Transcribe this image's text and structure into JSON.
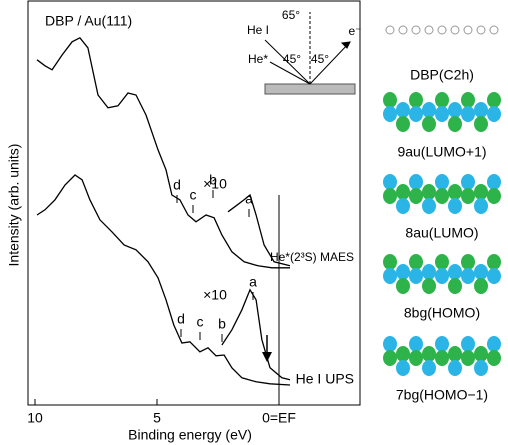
{
  "chart_data": {
    "type": "line",
    "title": "DBP / Au(111)",
    "x_label": "Binding energy (eV)",
    "y_label": "Intensity (arb. units)",
    "xlim": [
      10,
      -3.3
    ],
    "xticks": [
      10,
      5,
      {
        "value": 0,
        "label": "0=EF"
      }
    ],
    "ylim": [
      0,
      100
    ],
    "series": [
      {
        "name": "He*(2³S) MAES",
        "color": "#000000",
        "x": [
          9.92,
          9.59,
          9.3,
          8.89,
          8.48,
          8.16,
          7.83,
          7.42,
          7.01,
          6.6,
          6.19,
          5.86,
          5.45,
          4.96,
          4.63,
          4.39,
          4.06,
          3.73,
          3.4,
          2.99,
          2.66,
          2.34,
          1.93,
          1.43,
          0.86,
          0.29,
          -0.45
        ],
        "values": [
          86.3,
          84.8,
          83.8,
          87.5,
          90.8,
          91.8,
          89.3,
          77.5,
          74.3,
          74.8,
          78,
          77.5,
          72.5,
          63.8,
          58.8,
          52.5,
          51.3,
          47.5,
          45.8,
          47.5,
          46.8,
          42.5,
          38.3,
          35.8,
          34.8,
          34.3,
          34.3
        ]
      },
      {
        "name": "×10",
        "color": "#000000",
        "x": [
          2.09,
          1.76,
          1.43,
          1.19,
          0.94,
          0.61,
          0.2,
          -0.45
        ],
        "values": [
          48.3,
          49.8,
          51.3,
          52.5,
          47.5,
          40,
          35.8,
          34.8
        ]
      },
      {
        "name": "He I UPS",
        "color": "#000000",
        "x": [
          9.92,
          9.59,
          9.18,
          8.77,
          8.36,
          8.07,
          7.75,
          7.34,
          6.85,
          6.35,
          5.86,
          5.37,
          4.96,
          4.63,
          4.31,
          3.98,
          3.65,
          3.24,
          2.91,
          2.58,
          2.25,
          1.93,
          1.52,
          0.94,
          0.37,
          -0.45
        ],
        "values": [
          47.5,
          48.8,
          51.3,
          55,
          57.5,
          56.3,
          51.3,
          46.3,
          43.3,
          40,
          38.8,
          35.8,
          31.8,
          26.3,
          20,
          15.5,
          15.8,
          13.3,
          14.3,
          12.3,
          12.5,
          9.3,
          6.8,
          5.8,
          5.3,
          5
        ]
      },
      {
        "name": "×10",
        "color": "#000000",
        "x": [
          2.34,
          1.93,
          1.52,
          1.19,
          0.94,
          0.7,
          0.37,
          -0.12,
          -0.45
        ],
        "values": [
          15,
          18.8,
          23.8,
          28.8,
          26.3,
          16.3,
          9.3,
          6.8,
          6.3
        ]
      }
    ],
    "annotations": [
      "d",
      "c",
      "b",
      "a",
      "d",
      "c",
      "b",
      "a",
      "He I",
      "65°",
      "He*",
      "45°",
      "45°",
      "e⁻"
    ]
  },
  "orbitals": [
    "DBP(C2h)",
    "9au(LUMO+1)",
    "8au(LUMO)",
    "8bg(HOMO)",
    "7bg(HOMO−1)"
  ]
}
